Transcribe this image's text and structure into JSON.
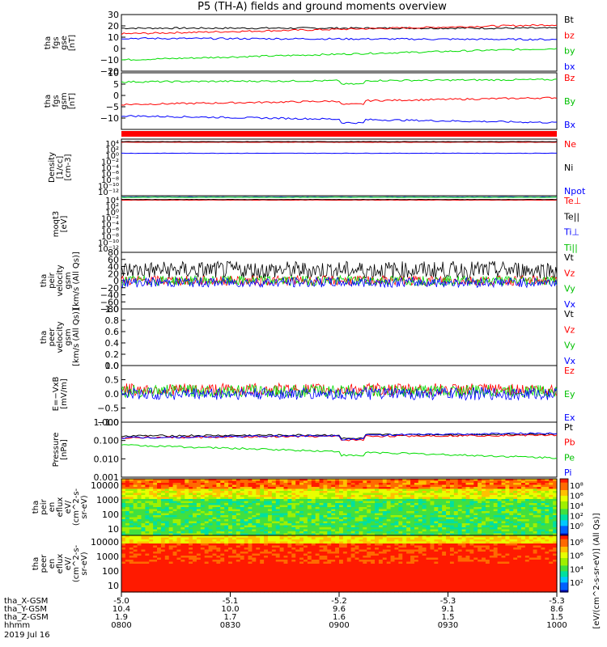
{
  "chart_data": {
    "type": "line",
    "title": "P5 (TH-A) fields and ground moments overview",
    "x_time_ticks": [
      "0800",
      "0830",
      "0900",
      "0930",
      "1000"
    ],
    "orbit_table": {
      "row_labels": [
        "tha_X-GSM",
        "tha_Y-GSM",
        "tha_Z-GSM",
        "hhmm",
        "2019 Jul 16"
      ],
      "columns": [
        [
          "-5.0",
          "10.4",
          "1.9",
          "0800"
        ],
        [
          "-5.1",
          "10.0",
          "1.7",
          "0830"
        ],
        [
          "-5.2",
          "9.6",
          "1.6",
          "0900"
        ],
        [
          "-5.3",
          "9.1",
          "1.5",
          "0930"
        ],
        [
          "-5.3",
          "8.6",
          "1.5",
          "1000"
        ]
      ]
    },
    "panels": [
      {
        "id": "fgs_gse",
        "ylabel": [
          "tha",
          "fgs",
          "gse",
          "[nT]"
        ],
        "ylim": [
          -20,
          30
        ],
        "ticks": [
          "30",
          "20",
          "10",
          "0",
          "−10",
          "−20"
        ],
        "tick_values": [
          30,
          20,
          10,
          0,
          -10,
          -20
        ],
        "series": [
          {
            "name": "Bt",
            "color": "#000000",
            "start": 18,
            "end": 18
          },
          {
            "name": "bz",
            "color": "#ff0000",
            "start": 13,
            "end": 21
          },
          {
            "name": "by",
            "color": "#00dd00",
            "start": -10,
            "end": 0
          },
          {
            "name": "bx",
            "color": "#0000ff",
            "start": 9,
            "end": 8
          }
        ]
      },
      {
        "id": "fgs_gsm",
        "ylabel": [
          "tha",
          "fgs",
          "gsm",
          "[nT]"
        ],
        "ylim": [
          -15,
          10
        ],
        "ticks": [
          "10",
          "5",
          "0",
          "−5",
          "−10"
        ],
        "tick_values": [
          10,
          5,
          0,
          -5,
          -10
        ],
        "series": [
          {
            "name": "Bz",
            "color": "#ff0000",
            "start": -4,
            "end": -1
          },
          {
            "name": "By",
            "color": "#00dd00",
            "start": 6,
            "end": 7
          },
          {
            "name": "Bx",
            "color": "#0000ff",
            "start": -9,
            "end": -12
          }
        ]
      },
      {
        "id": "density",
        "ylabel": [
          "Density",
          "[1/cc]",
          "[cm-3]"
        ],
        "ylim_log": [
          -14,
          4
        ],
        "ticks": [
          "10⁴",
          "10²",
          "10⁰",
          "10⁻²",
          "10⁻⁴",
          "10⁻⁶",
          "10⁻⁸",
          "10⁻¹⁰",
          "10⁻¹²"
        ],
        "series": [
          {
            "name": "Ne",
            "color": "#ff0000",
            "start": 3,
            "end": 3
          },
          {
            "name": "Ni",
            "color": "#000000",
            "start": 3.2,
            "end": 3.2
          },
          {
            "name": "Npot",
            "color": "#0000ff",
            "start": -0.5,
            "end": -0.5
          }
        ]
      },
      {
        "id": "temperature",
        "ylabel": [
          "moqt3",
          "[eV]"
        ],
        "ylim_log": [
          -14,
          4
        ],
        "ticks": [
          "10⁴",
          "10²",
          "10⁰",
          "10⁻²",
          "10⁻⁴",
          "10⁻⁶",
          "10⁻⁸",
          "10⁻¹⁰",
          "10⁻¹²"
        ],
        "series": [
          {
            "name": "Te⊥",
            "color": "#ff0000",
            "start": 2.6,
            "end": 2.6
          },
          {
            "name": "Te||",
            "color": "#000000",
            "start": 2.8,
            "end": 2.8
          },
          {
            "name": "Ti⊥",
            "color": "#0000ff",
            "start": 3.6,
            "end": 3.6
          },
          {
            "name": "Ti||",
            "color": "#00dd00",
            "start": 3.5,
            "end": 3.5
          }
        ]
      },
      {
        "id": "peir_velocity",
        "ylabel": [
          "tha",
          "peir",
          "velocity",
          "gsm",
          "[km/s (All Qs)]"
        ],
        "ylim": [
          -80,
          80
        ],
        "ticks": [
          "80",
          "60",
          "40",
          "20",
          "0",
          "−20",
          "−40",
          "−60",
          "−80"
        ],
        "tick_values": [
          80,
          60,
          40,
          20,
          0,
          -20,
          -40,
          -60,
          -80
        ],
        "series": [
          {
            "name": "Vt",
            "color": "#000000",
            "start": 30,
            "end": 30
          },
          {
            "name": "Vz",
            "color": "#ff0000",
            "start": 0,
            "end": 0
          },
          {
            "name": "Vy",
            "color": "#00dd00",
            "start": 0,
            "end": 0
          },
          {
            "name": "Vx",
            "color": "#0000ff",
            "start": -5,
            "end": -5
          }
        ]
      },
      {
        "id": "peer_velocity",
        "ylabel": [
          "tha",
          "peer",
          "velocity",
          "gsm",
          "[km/s (All Qs)]"
        ],
        "ylim": [
          0,
          1
        ],
        "ticks": [
          "1.0",
          "0.8",
          "0.6",
          "0.4",
          "0.2",
          "0.0"
        ],
        "tick_values": [
          1,
          0.8,
          0.6,
          0.4,
          0.2,
          0
        ],
        "series": [
          {
            "name": "Vt",
            "color": "#000000"
          },
          {
            "name": "Vz",
            "color": "#ff0000"
          },
          {
            "name": "Vy",
            "color": "#00dd00"
          },
          {
            "name": "Vx",
            "color": "#0000ff"
          }
        ]
      },
      {
        "id": "efield",
        "ylabel": [
          "E=−VxB",
          "[mV/m]"
        ],
        "ylim": [
          -1,
          1
        ],
        "ticks": [
          "1.0",
          "0.5",
          "0.0",
          "−0.5",
          "−1.0"
        ],
        "tick_values": [
          1,
          0.5,
          0,
          -0.5,
          -1
        ],
        "series": [
          {
            "name": "Ez",
            "color": "#ff0000",
            "start": 0.15,
            "end": 0.15
          },
          {
            "name": "Ey",
            "color": "#00dd00",
            "start": 0.1,
            "end": 0.1
          },
          {
            "name": "Ex",
            "color": "#0000ff",
            "start": 0,
            "end": 0
          }
        ]
      },
      {
        "id": "pressure",
        "ylabel": [
          "Pressure",
          "[nPa]"
        ],
        "ylim_log": [
          -3,
          0
        ],
        "ticks": [
          "1.000",
          "0.100",
          "0.010",
          "0.001"
        ],
        "tick_values": [
          0,
          -1,
          -2,
          -3
        ],
        "series": [
          {
            "name": "Pt",
            "color": "#000000",
            "start": -0.75,
            "end": -0.65
          },
          {
            "name": "Pb",
            "color": "#ff0000",
            "start": -0.85,
            "end": -0.7
          },
          {
            "name": "Pe",
            "color": "#00dd00",
            "start": -1.25,
            "end": -1.95
          },
          {
            "name": "Pi",
            "color": "#0000ff",
            "start": -0.85,
            "end": -0.6
          }
        ]
      },
      {
        "id": "peir_spectrogram",
        "type": "heatmap",
        "ylabel": [
          "tha",
          "peir",
          "en",
          "eflux",
          "eV/",
          "(cm^2-s-",
          "sr-eV)"
        ],
        "ticks": [
          "10000",
          "1000",
          "100",
          "10"
        ],
        "colorbar_ticks": [
          "10⁸",
          "10⁶",
          "10⁴",
          "10²",
          "10⁰"
        ]
      },
      {
        "id": "peer_spectrogram",
        "type": "heatmap",
        "ylabel": [
          "tha",
          "peer",
          "en",
          "eflux",
          "eV/",
          "(cm^2-s-",
          "sr-eV)"
        ],
        "ticks": [
          "10000",
          "1000",
          "100",
          "10"
        ],
        "colorbar_ticks": [
          "10⁸",
          "10⁶",
          "10⁴",
          "10²"
        ]
      }
    ],
    "colorbar_label": "[eV/(cm^2-s-sr-eV)] (All Qs)]"
  }
}
